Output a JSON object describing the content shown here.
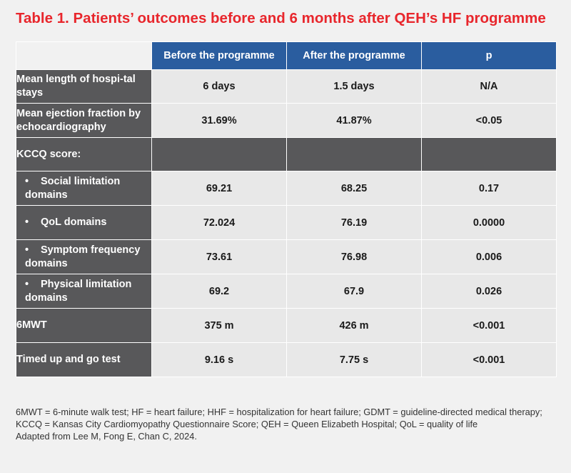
{
  "title": "Table 1. Patients’ outcomes before and 6 months after QEH’s HF programme",
  "table": {
    "headers": [
      "Before the programme",
      "After the programme",
      "p"
    ],
    "rows": [
      {
        "label": "Mean length of hospi-tal stays",
        "before": "6 days",
        "after": "1.5 days",
        "p": "N/A"
      },
      {
        "label": "Mean ejection fraction by echocardiography",
        "before": "31.69%",
        "after": "41.87%",
        "p": "<0.05"
      },
      {
        "label": "KCCQ score:"
      },
      {
        "label": "Social limitation domains",
        "before": "69.21",
        "after": "68.25",
        "p": "0.17"
      },
      {
        "label": "QoL domains",
        "before": "72.024",
        "after": "76.19",
        "p": "0.0000"
      },
      {
        "label": "Symptom frequency domains",
        "before": "73.61",
        "after": "76.98",
        "p": "0.006"
      },
      {
        "label": "Physical limitation domains",
        "before": "69.2",
        "after": "67.9",
        "p": "0.026"
      },
      {
        "label": "6MWT",
        "before": "375 m",
        "after": "426 m",
        "p": "<0.001"
      },
      {
        "label": "Timed up and go test",
        "before": "9.16 s",
        "after": "7.75 s",
        "p": "<0.001"
      }
    ]
  },
  "bullet_char": "•",
  "footnote": {
    "abbreviations": "6MWT = 6-minute walk test; HF = heart failure; HHF = hospitalization for heart failure; GDMT = guideline-directed medical therapy; KCCQ = Kansas City Cardiomyopathy Questionnaire Score; QEH = Queen Elizabeth Hospital; QoL = quality of life",
    "source": "Adapted from Lee M, Fong E, Chan C, 2024."
  }
}
